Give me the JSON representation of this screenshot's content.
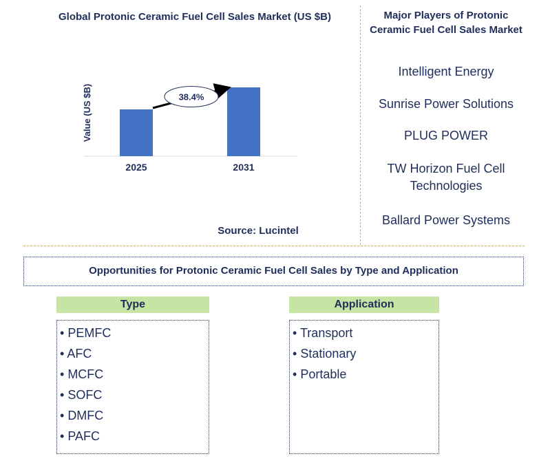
{
  "chart_data": {
    "type": "bar",
    "title": "Global Protonic Ceramic Fuel Cell Sales Market (US $B)",
    "categories": [
      "2025",
      "2031"
    ],
    "values": [
      0.68,
      1.0
    ],
    "ylabel": "Value (US $B)",
    "xlabel": "",
    "ylim": [
      0,
      1.1
    ],
    "grid": false,
    "annotation": "38.4%",
    "colors": {
      "bar": "#4472c4",
      "arrow": "#000000"
    }
  },
  "source": "Source: Lucintel",
  "players": {
    "title": "Major Players of Protonic Ceramic Fuel Cell Sales Market",
    "items": [
      "Intelligent Energy",
      "Sunrise Power Solutions",
      "PLUG POWER",
      "TW Horizon Fuel Cell Technologies",
      "Ballard Power Systems"
    ]
  },
  "opportunities": {
    "title": "Opportunities for Protonic Ceramic Fuel Cell Sales by Type and Application",
    "type": {
      "header": "Type",
      "items": [
        "PEMFC",
        "AFC",
        "MCFC",
        "SOFC",
        "DMFC",
        "PAFC"
      ]
    },
    "application": {
      "header": "Application",
      "items": [
        "Transport",
        "Stationary",
        "Portable"
      ]
    }
  },
  "colors": {
    "text": "#1f2d5a",
    "header_bg": "#c6e5a4",
    "divider": "#d4b24a"
  }
}
